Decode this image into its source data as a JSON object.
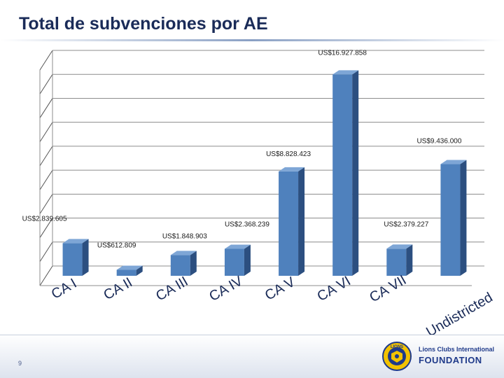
{
  "page": {
    "title": "Total de subvenciones por AE",
    "page_number": "9"
  },
  "logo": {
    "line1": "Lions Clubs International",
    "line2": "FOUNDATION",
    "emblem_text": "LIONS",
    "icon": "lions-emblem-icon"
  },
  "chart_data": {
    "type": "bar",
    "categories": [
      "CA I",
      "CA II",
      "CA III",
      "CA IV",
      "CA V",
      "CA VI",
      "CA VII",
      "Undistricted"
    ],
    "values": [
      2839605,
      612809,
      1848903,
      2368239,
      8828423,
      16927858,
      2379227,
      9436000
    ],
    "data_labels": [
      "US$2.839.605",
      "US$612.809",
      "US$1.848.903",
      "US$2.368.239",
      "US$8.828.423",
      "US$16.927.858",
      "US$2.379.227",
      "US$9.436.000"
    ],
    "ylim": [
      0,
      18000000
    ],
    "grid": true,
    "three_d": true,
    "colors": {
      "bar_front": "#4f81bd",
      "bar_side": "#2c4f80",
      "bar_top": "#7ea6d6",
      "grid": "#555555"
    }
  }
}
